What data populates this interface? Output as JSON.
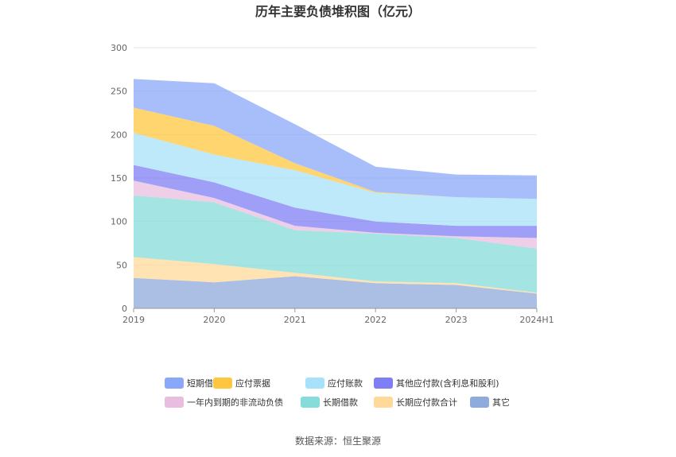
{
  "chart_data": {
    "type": "area",
    "stacked": true,
    "title": "历年主要负债堆积图（亿元）",
    "categories": [
      "2019",
      "2020",
      "2021",
      "2022",
      "2023",
      "2024H1"
    ],
    "ylim": [
      0,
      300
    ],
    "yticks": [
      0,
      50,
      100,
      150,
      200,
      250,
      300
    ],
    "grid": true,
    "legend_position": "bottom",
    "series": [
      {
        "name": "其它",
        "color": "#8FAADC",
        "values": [
          35,
          30,
          37,
          29,
          27,
          17
        ]
      },
      {
        "name": "长期应付款合计",
        "color": "#FFD99A",
        "values": [
          24,
          21,
          4,
          2,
          2,
          1
        ]
      },
      {
        "name": "长期借款",
        "color": "#86DCDA",
        "values": [
          71,
          71,
          49,
          55,
          52,
          51
        ]
      },
      {
        "name": "一年内到期的非流动负债",
        "color": "#E9BDE0",
        "values": [
          17,
          5,
          5,
          1,
          2,
          12
        ]
      },
      {
        "name": "其他应付款(含利息和股利)",
        "color": "#7F7FF5",
        "values": [
          18,
          18,
          21,
          13,
          12,
          14
        ]
      },
      {
        "name": "应付账款",
        "color": "#A8E2FA",
        "values": [
          37,
          32,
          43,
          33,
          33,
          31
        ]
      },
      {
        "name": "应付票据",
        "color": "#FFC740",
        "values": [
          29,
          33,
          8,
          1,
          0,
          0
        ]
      },
      {
        "name": "短期借款",
        "color": "#8AA8FA",
        "values": [
          33,
          49,
          45,
          29,
          26,
          27
        ]
      }
    ],
    "legend_order": [
      "短期借款",
      "应付票据",
      "应付账款",
      "其他应付款(含利息和股利)",
      "一年内到期的非流动负债",
      "长期借款",
      "长期应付款合计",
      "其它"
    ]
  },
  "source_text": "数据来源：恒生聚源"
}
